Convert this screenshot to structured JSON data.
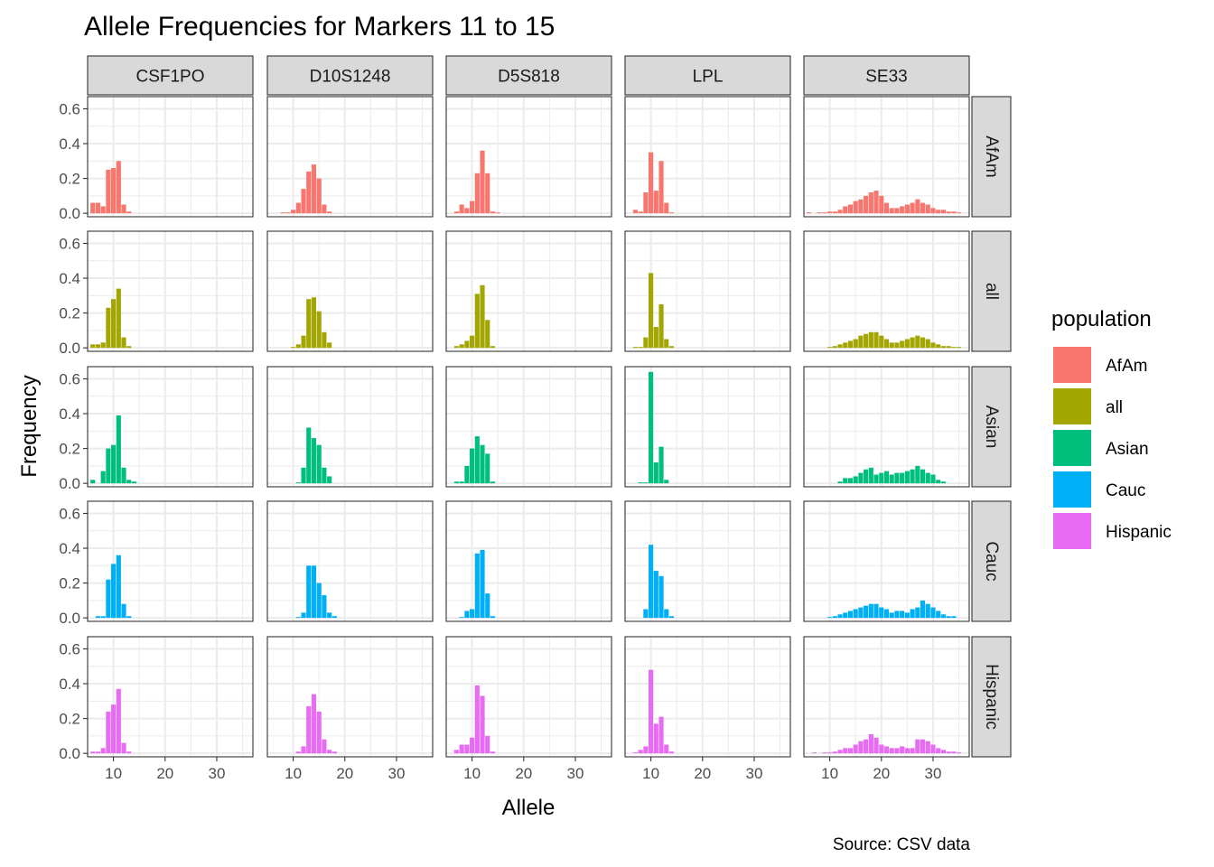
{
  "chart_data": {
    "type": "bar",
    "title": "Allele Frequencies for Markers 11 to 15",
    "caption": "Source: CSV data",
    "xlabel": "Allele",
    "ylabel": "Frequency",
    "xlim": [
      5,
      37
    ],
    "ylim": [
      -0.02,
      0.67
    ],
    "x_ticks": [
      10,
      20,
      30
    ],
    "y_ticks": [
      0.0,
      0.2,
      0.4,
      0.6
    ],
    "y_tick_labels": [
      "0.0",
      "0.2",
      "0.4",
      "0.6"
    ],
    "grid": true,
    "legend_position": "right",
    "facet_columns": [
      "CSF1PO",
      "D10S1248",
      "D5S818",
      "LPL",
      "SE33"
    ],
    "facet_rows": [
      "AfAm",
      "all",
      "Asian",
      "Cauc",
      "Hispanic"
    ],
    "legend": {
      "title": "population",
      "entries": [
        {
          "name": "AfAm",
          "color": "#F8766D"
        },
        {
          "name": "all",
          "color": "#A3A500"
        },
        {
          "name": "Asian",
          "color": "#00BF7D"
        },
        {
          "name": "Cauc",
          "color": "#00B0F6"
        },
        {
          "name": "Hispanic",
          "color": "#E76BF3"
        }
      ]
    },
    "panels": {
      "CSF1PO": {
        "AfAm": {
          "x": [
            6,
            7,
            8,
            9,
            10,
            11,
            12,
            13,
            14,
            15
          ],
          "y": [
            0.06,
            0.06,
            0.04,
            0.25,
            0.26,
            0.3,
            0.05,
            0.01,
            0,
            0
          ]
        },
        "all": {
          "x": [
            6,
            7,
            8,
            9,
            10,
            11,
            12,
            13,
            14,
            15
          ],
          "y": [
            0.02,
            0.02,
            0.03,
            0.23,
            0.28,
            0.34,
            0.06,
            0.01,
            0,
            0
          ]
        },
        "Asian": {
          "x": [
            6,
            7,
            8,
            9,
            10,
            11,
            12,
            13,
            14,
            15
          ],
          "y": [
            0.02,
            0,
            0.07,
            0.2,
            0.22,
            0.39,
            0.09,
            0.02,
            0.01,
            0
          ]
        },
        "Cauc": {
          "x": [
            6,
            7,
            8,
            9,
            10,
            11,
            12,
            13,
            14,
            15
          ],
          "y": [
            0,
            0.01,
            0.01,
            0.22,
            0.31,
            0.36,
            0.08,
            0.01,
            0,
            0
          ]
        },
        "Hispanic": {
          "x": [
            6,
            7,
            8,
            9,
            10,
            11,
            12,
            13,
            14,
            15
          ],
          "y": [
            0.01,
            0.01,
            0.03,
            0.24,
            0.28,
            0.37,
            0.06,
            0.01,
            0,
            0
          ]
        }
      },
      "D10S1248": {
        "AfAm": {
          "x": [
            8,
            9,
            10,
            11,
            12,
            13,
            14,
            15,
            16,
            17,
            18,
            19
          ],
          "y": [
            0.005,
            0.005,
            0.02,
            0.06,
            0.14,
            0.24,
            0.28,
            0.2,
            0.05,
            0.01,
            0,
            0
          ]
        },
        "all": {
          "x": [
            8,
            9,
            10,
            11,
            12,
            13,
            14,
            15,
            16,
            17,
            18,
            19
          ],
          "y": [
            0,
            0,
            0.005,
            0.02,
            0.07,
            0.28,
            0.29,
            0.21,
            0.09,
            0.03,
            0,
            0
          ]
        },
        "Asian": {
          "x": [
            8,
            9,
            10,
            11,
            12,
            13,
            14,
            15,
            16,
            17,
            18,
            19
          ],
          "y": [
            0,
            0,
            0,
            0.005,
            0.09,
            0.32,
            0.26,
            0.22,
            0.09,
            0.04,
            0,
            0
          ]
        },
        "Cauc": {
          "x": [
            8,
            9,
            10,
            11,
            12,
            13,
            14,
            15,
            16,
            17,
            18,
            19
          ],
          "y": [
            0,
            0,
            0,
            0.005,
            0.03,
            0.3,
            0.3,
            0.2,
            0.13,
            0.03,
            0.01,
            0
          ]
        },
        "Hispanic": {
          "x": [
            8,
            9,
            10,
            11,
            12,
            13,
            14,
            15,
            16,
            17,
            18,
            19
          ],
          "y": [
            0,
            0,
            0,
            0.01,
            0.04,
            0.27,
            0.34,
            0.24,
            0.08,
            0.02,
            0.01,
            0
          ]
        }
      },
      "D5S818": {
        "AfAm": {
          "x": [
            7,
            8,
            9,
            10,
            11,
            12,
            13,
            14,
            15,
            16
          ],
          "y": [
            0.01,
            0.05,
            0.03,
            0.07,
            0.23,
            0.36,
            0.23,
            0.01,
            0.005,
            0
          ]
        },
        "all": {
          "x": [
            7,
            8,
            9,
            10,
            11,
            12,
            13,
            14,
            15,
            16
          ],
          "y": [
            0.01,
            0.02,
            0.04,
            0.07,
            0.31,
            0.36,
            0.16,
            0.01,
            0,
            0
          ]
        },
        "Asian": {
          "x": [
            7,
            8,
            9,
            10,
            11,
            12,
            13,
            14,
            15,
            16
          ],
          "y": [
            0.01,
            0.01,
            0.1,
            0.2,
            0.27,
            0.22,
            0.17,
            0.01,
            0,
            0
          ]
        },
        "Cauc": {
          "x": [
            7,
            8,
            9,
            10,
            11,
            12,
            13,
            14,
            15,
            16
          ],
          "y": [
            0,
            0.005,
            0.04,
            0.05,
            0.37,
            0.39,
            0.14,
            0.01,
            0,
            0
          ]
        },
        "Hispanic": {
          "x": [
            7,
            8,
            9,
            10,
            11,
            12,
            13,
            14,
            15,
            16
          ],
          "y": [
            0.02,
            0.05,
            0.05,
            0.09,
            0.39,
            0.33,
            0.1,
            0.01,
            0,
            0
          ]
        }
      },
      "LPL": {
        "AfAm": {
          "x": [
            7,
            8,
            9,
            10,
            11,
            12,
            13,
            14,
            15
          ],
          "y": [
            0.02,
            0.01,
            0.12,
            0.35,
            0.13,
            0.3,
            0.06,
            0.005,
            0
          ]
        },
        "all": {
          "x": [
            7,
            8,
            9,
            10,
            11,
            12,
            13,
            14,
            15
          ],
          "y": [
            0.005,
            0.005,
            0.06,
            0.43,
            0.12,
            0.25,
            0.05,
            0.01,
            0
          ]
        },
        "Asian": {
          "x": [
            7,
            8,
            9,
            10,
            11,
            12,
            13,
            14,
            15
          ],
          "y": [
            0,
            0.005,
            0.005,
            0.64,
            0.12,
            0.21,
            0.02,
            0,
            0
          ]
        },
        "Cauc": {
          "x": [
            7,
            8,
            9,
            10,
            11,
            12,
            13,
            14,
            15
          ],
          "y": [
            0,
            0,
            0.05,
            0.42,
            0.27,
            0.24,
            0.05,
            0.01,
            0
          ]
        },
        "Hispanic": {
          "x": [
            7,
            8,
            9,
            10,
            11,
            12,
            13,
            14,
            15
          ],
          "y": [
            0.005,
            0.02,
            0.04,
            0.48,
            0.17,
            0.21,
            0.05,
            0.01,
            0
          ]
        }
      },
      "SE33": {
        "AfAm": {
          "x": [
            6,
            7,
            8,
            9,
            10,
            11,
            12,
            13,
            14,
            15,
            16,
            17,
            18,
            19,
            20,
            21,
            22,
            23,
            24,
            25,
            26,
            27,
            28,
            29,
            30,
            31,
            32,
            33,
            34,
            35
          ],
          "y": [
            0.005,
            0,
            0.005,
            0.005,
            0.01,
            0.01,
            0.02,
            0.04,
            0.05,
            0.07,
            0.08,
            0.1,
            0.12,
            0.13,
            0.1,
            0.06,
            0.03,
            0.03,
            0.04,
            0.05,
            0.06,
            0.08,
            0.06,
            0.05,
            0.03,
            0.02,
            0.02,
            0.01,
            0.01,
            0.005
          ]
        },
        "all": {
          "x": [
            10,
            11,
            12,
            13,
            14,
            15,
            16,
            17,
            18,
            19,
            20,
            21,
            22,
            23,
            24,
            25,
            26,
            27,
            28,
            29,
            30,
            31,
            32,
            33,
            34,
            35
          ],
          "y": [
            0.005,
            0.01,
            0.02,
            0.03,
            0.04,
            0.05,
            0.07,
            0.08,
            0.09,
            0.09,
            0.07,
            0.05,
            0.03,
            0.03,
            0.04,
            0.05,
            0.06,
            0.07,
            0.06,
            0.05,
            0.03,
            0.02,
            0.01,
            0.01,
            0.005,
            0.005
          ]
        },
        "Asian": {
          "x": [
            12,
            13,
            14,
            15,
            16,
            17,
            18,
            19,
            20,
            21,
            22,
            23,
            24,
            25,
            26,
            27,
            28,
            29,
            30,
            31,
            32
          ],
          "y": [
            0.01,
            0.03,
            0.03,
            0.04,
            0.06,
            0.08,
            0.09,
            0.05,
            0.06,
            0.07,
            0.05,
            0.06,
            0.06,
            0.07,
            0.08,
            0.1,
            0.08,
            0.06,
            0.05,
            0.02,
            0.01
          ]
        },
        "Cauc": {
          "x": [
            10,
            11,
            12,
            13,
            14,
            15,
            16,
            17,
            18,
            19,
            20,
            21,
            22,
            23,
            24,
            25,
            26,
            27,
            28,
            29,
            30,
            31,
            32,
            33,
            34
          ],
          "y": [
            0.005,
            0.01,
            0.02,
            0.03,
            0.04,
            0.05,
            0.06,
            0.07,
            0.08,
            0.08,
            0.06,
            0.05,
            0.03,
            0.04,
            0.04,
            0.03,
            0.05,
            0.06,
            0.1,
            0.08,
            0.06,
            0.04,
            0.02,
            0.01,
            0.01
          ]
        },
        "Hispanic": {
          "x": [
            7,
            8,
            9,
            10,
            11,
            12,
            13,
            14,
            15,
            16,
            17,
            18,
            19,
            20,
            21,
            22,
            23,
            24,
            25,
            26,
            27,
            28,
            29,
            30,
            31,
            32,
            33,
            34,
            35
          ],
          "y": [
            0.005,
            0,
            0.005,
            0.005,
            0.01,
            0.02,
            0.03,
            0.03,
            0.05,
            0.07,
            0.08,
            0.11,
            0.09,
            0.05,
            0.04,
            0.03,
            0.03,
            0.04,
            0.03,
            0.03,
            0.08,
            0.08,
            0.07,
            0.05,
            0.03,
            0.02,
            0.01,
            0.01,
            0.005
          ]
        }
      }
    }
  }
}
